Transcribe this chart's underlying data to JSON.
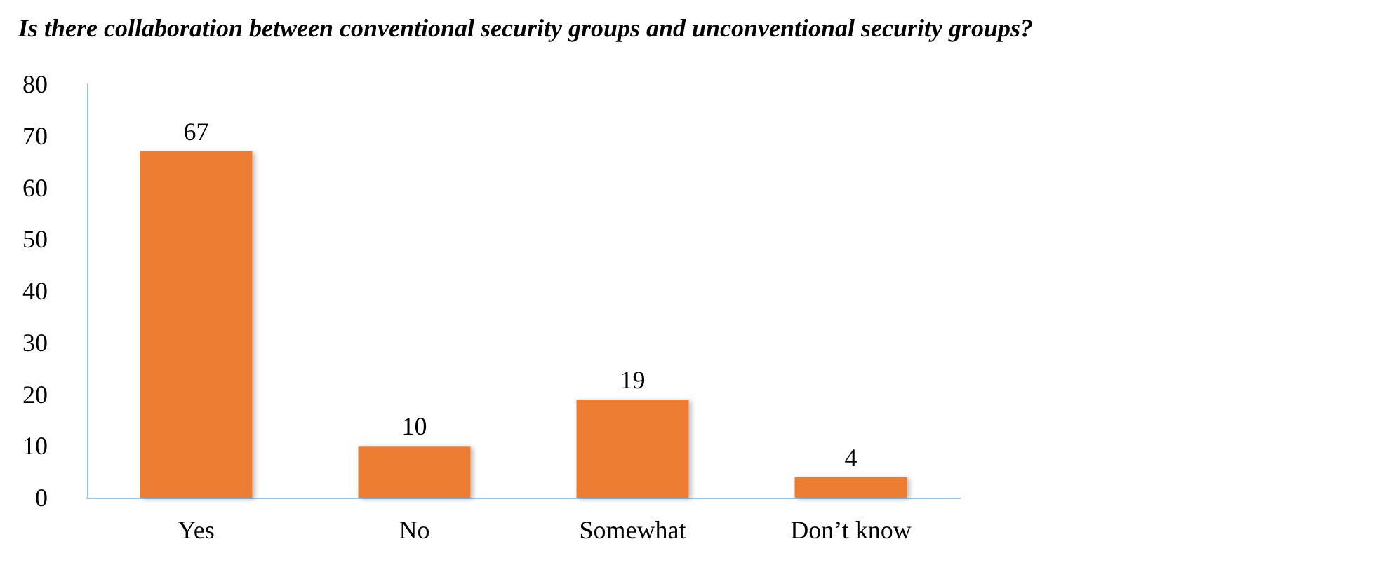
{
  "chart_data": {
    "type": "bar",
    "title": "Is there collaboration between conventional security groups and unconventional security groups?",
    "categories": [
      "Yes",
      "No",
      "Somewhat",
      "Don’t know"
    ],
    "values": [
      67,
      10,
      19,
      4
    ],
    "color": "#ed7d31",
    "ylim": [
      0,
      80
    ],
    "yticks": [
      0,
      10,
      20,
      30,
      40,
      50,
      60,
      70,
      80
    ],
    "grid": false,
    "data_labels": true
  }
}
